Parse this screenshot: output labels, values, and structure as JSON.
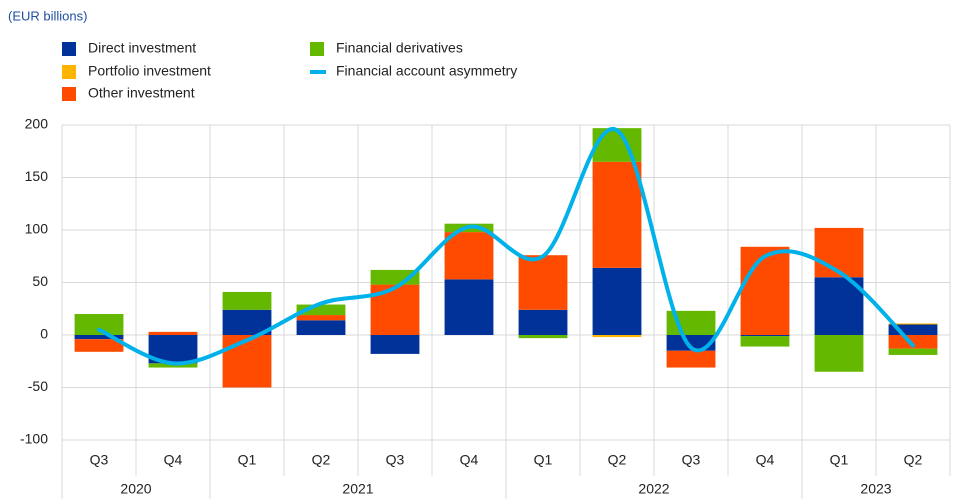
{
  "chart_data": {
    "type": "bar",
    "stacked": true,
    "subtitle": "(EUR billions)",
    "categories": [
      "Q3",
      "Q4",
      "Q1",
      "Q2",
      "Q3",
      "Q4",
      "Q1",
      "Q2",
      "Q3",
      "Q4",
      "Q1",
      "Q2"
    ],
    "years": [
      {
        "label": "2020",
        "span": 2
      },
      {
        "label": "2021",
        "span": 4
      },
      {
        "label": "2022",
        "span": 4
      },
      {
        "label": "2023",
        "span": 2
      }
    ],
    "series": [
      {
        "name": "Direct investment",
        "type": "bar",
        "color": "#003299",
        "values": [
          -4,
          -27,
          24,
          14,
          -18,
          53,
          24,
          64,
          -15,
          -1,
          55,
          10
        ]
      },
      {
        "name": "Portfolio investment",
        "type": "bar",
        "color": "#ffb400",
        "values": [
          0,
          0,
          0,
          0,
          0,
          0,
          0,
          -2,
          0,
          0,
          0,
          1
        ]
      },
      {
        "name": "Other investment",
        "type": "bar",
        "color": "#ff4b00",
        "values": [
          -12,
          3,
          -50,
          5,
          48,
          45,
          52,
          101,
          -16,
          84,
          47,
          -13
        ]
      },
      {
        "name": "Financial derivatives",
        "type": "bar",
        "color": "#65b800",
        "values": [
          20,
          -4,
          17,
          10,
          14,
          8,
          -3,
          32,
          23,
          -10,
          -35,
          -6
        ]
      },
      {
        "name": "Financial account asymmetry",
        "type": "line",
        "color": "#00b1ea",
        "values": [
          5,
          -27,
          -5,
          30,
          45,
          103,
          75,
          195,
          -12,
          75,
          60,
          -10
        ]
      }
    ],
    "ylim": [
      -100,
      200
    ],
    "yticks": [
      200,
      150,
      100,
      50,
      0,
      -50,
      -100
    ],
    "grid": true
  }
}
